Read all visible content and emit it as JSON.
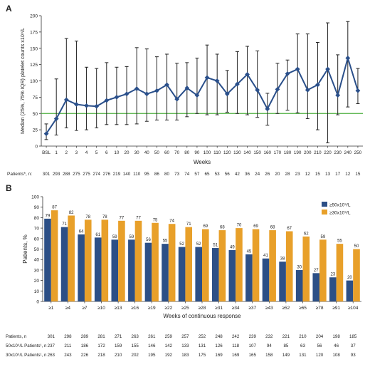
{
  "chart_data": [
    {
      "panel": "A",
      "type": "line",
      "ylabel": "Median (25%, 75% IQR) platelet counts x10⁹/L",
      "xlabel": "Weeks",
      "ylim": [
        0,
        200
      ],
      "yticks": [
        0,
        25,
        50,
        75,
        100,
        125,
        150,
        175,
        200
      ],
      "reference_line": 50,
      "x": [
        "BSL",
        "1",
        "2",
        "3",
        "4",
        "5",
        "6",
        "10",
        "20",
        "30",
        "40",
        "50",
        "60",
        "70",
        "80",
        "90",
        "100",
        "110",
        "120",
        "130",
        "140",
        "150",
        "160",
        "170",
        "180",
        "190",
        "200",
        "210",
        "220",
        "230",
        "240",
        "250"
      ],
      "median": [
        19,
        42,
        71,
        64,
        62,
        61,
        70,
        75,
        80,
        88,
        80,
        85,
        94,
        72,
        89,
        78,
        105,
        100,
        80,
        95,
        110,
        86,
        57,
        87,
        111,
        118,
        86,
        94,
        118,
        78,
        135,
        85
      ],
      "q1": [
        10,
        17,
        28,
        24,
        25,
        28,
        33,
        33,
        33,
        34,
        38,
        40,
        40,
        40,
        45,
        50,
        48,
        48,
        52,
        50,
        48,
        44,
        32,
        50,
        55,
        51,
        42,
        25,
        5,
        48,
        60,
        65
      ],
      "q3": [
        34,
        103,
        165,
        161,
        121,
        119,
        128,
        121,
        122,
        151,
        149,
        137,
        141,
        127,
        128,
        135,
        155,
        141,
        116,
        145,
        153,
        146,
        81,
        127,
        132,
        172,
        172,
        159,
        189,
        140,
        191,
        119
      ],
      "patients_label": "Patients*, n:",
      "patients": [
        301,
        293,
        288,
        275,
        275,
        274,
        276,
        219,
        140,
        110,
        95,
        86,
        80,
        73,
        74,
        57,
        65,
        53,
        56,
        42,
        36,
        24,
        26,
        20,
        28,
        23,
        12,
        15,
        13,
        17,
        12,
        15
      ],
      "colors": {
        "line": "#2a4f8a",
        "marker": "#2a4f8a",
        "reference": "#4caf3e"
      }
    },
    {
      "panel": "B",
      "type": "bar",
      "ylabel": "Patients, %",
      "xlabel": "Weeks of continuous response",
      "ylim": [
        0,
        100
      ],
      "yticks": [
        0,
        10,
        20,
        30,
        40,
        50,
        60,
        70,
        80,
        90,
        100
      ],
      "categories": [
        "≥1",
        "≥4",
        "≥7",
        "≥10",
        "≥13",
        "≥16",
        "≥19",
        "≥22",
        "≥25",
        "≥28",
        "≥31",
        "≥34",
        "≥37",
        "≥43",
        "≥52",
        "≥65",
        "≥78",
        "≥91",
        "≥104"
      ],
      "series": [
        {
          "name": "≥50x10⁹/L",
          "color": "#2c4f86",
          "values": [
            79,
            71,
            64,
            61,
            59,
            59,
            56,
            55,
            52,
            52,
            51,
            49,
            45,
            41,
            38,
            30,
            27,
            23,
            20
          ]
        },
        {
          "name": "≥30x10⁹/L",
          "color": "#e8a02a",
          "values": [
            87,
            82,
            78,
            78,
            77,
            77,
            75,
            74,
            71,
            69,
            68,
            70,
            69,
            68,
            67,
            62,
            59,
            55,
            50
          ]
        }
      ],
      "legend_position": "top-right",
      "table": [
        {
          "label": "Patients, n",
          "values": [
            301,
            298,
            289,
            281,
            271,
            263,
            261,
            259,
            257,
            252,
            248,
            242,
            239,
            232,
            221,
            210,
            204,
            198,
            185
          ]
        },
        {
          "label": "50x10⁹/L Patients¹, n",
          "values": [
            237,
            211,
            186,
            172,
            159,
            155,
            146,
            142,
            133,
            131,
            126,
            118,
            107,
            94,
            85,
            63,
            56,
            46,
            37
          ]
        },
        {
          "label": "30x10⁹/L Patients¹, n",
          "values": [
            263,
            243,
            226,
            218,
            210,
            202,
            195,
            192,
            183,
            175,
            169,
            169,
            165,
            158,
            149,
            131,
            120,
            108,
            93
          ]
        }
      ]
    }
  ]
}
